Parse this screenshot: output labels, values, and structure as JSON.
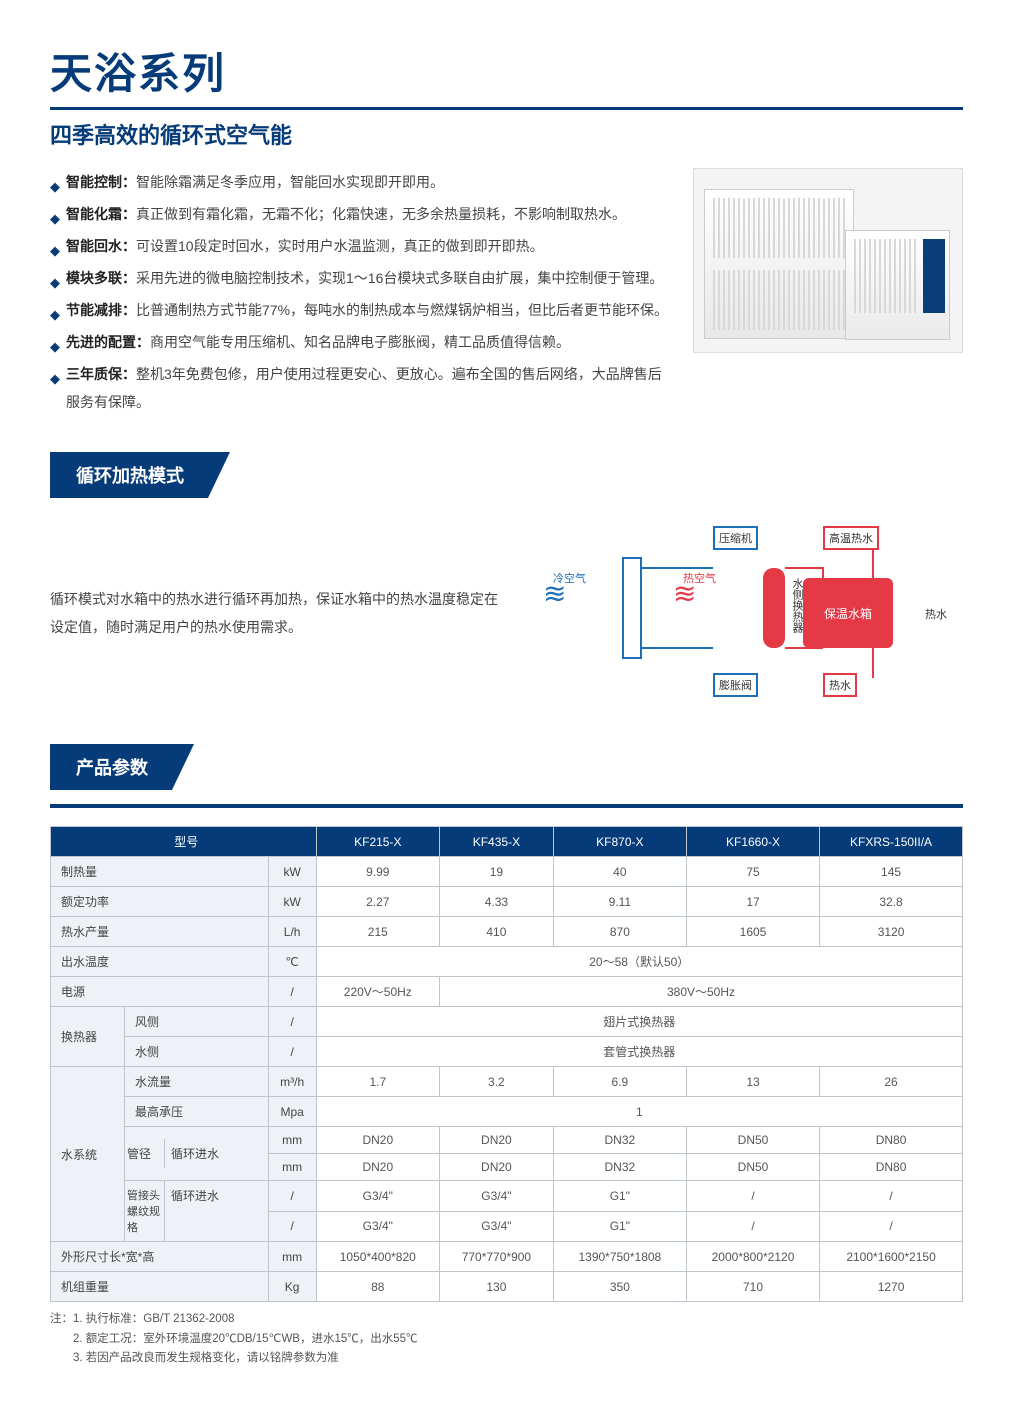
{
  "title": "天浴系列",
  "subtitle": "四季高效的循环式空气能",
  "features": [
    {
      "label": "智能控制：",
      "text": "智能除霜满足冬季应用，智能回水实现即开即用。"
    },
    {
      "label": "智能化霜：",
      "text": "真正做到有霜化霜，无霜不化；化霜快速，无多余热量损耗，不影响制取热水。"
    },
    {
      "label": "智能回水：",
      "text": "可设置10段定时回水，实时用户水温监测，真正的做到即开即热。"
    },
    {
      "label": "模块多联：",
      "text": "采用先进的微电脑控制技术，实现1～16台模块式多联自由扩展，集中控制便于管理。"
    },
    {
      "label": "节能减排：",
      "text": "比普通制热方式节能77%，每吨水的制热成本与燃煤锅炉相当，但比后者更节能环保。"
    },
    {
      "label": "先进的配置：",
      "text": "商用空气能专用压缩机、知名品牌电子膨胀阀，精工品质值得信赖。"
    },
    {
      "label": "三年质保：",
      "text": "整机3年免费包修，用户使用过程更安心、更放心。遍布全国的售后网络，大品牌售后服务有保障。"
    }
  ],
  "mode": {
    "header": "循环加热模式",
    "text": "循环模式对水箱中的热水进行循环再加热，保证水箱中的热水温度稳定在设定值，随时满足用户的热水使用需求。",
    "diagram": {
      "compressor": "压缩机",
      "hot_water_high": "高温热水",
      "cold_air": "冷空气",
      "hot_air": "热空气",
      "exchanger": "水侧换热器",
      "tank": "保温水箱",
      "expansion": "膨胀阀",
      "hot_water": "热水"
    }
  },
  "params": {
    "header": "产品参数",
    "columns": [
      "型号",
      "",
      "KF215-X",
      "KF435-X",
      "KF870-X",
      "KF1660-X",
      "KFXRS-150II/A"
    ],
    "rows": [
      {
        "label": "制热量",
        "unit": "kW",
        "cells": [
          "9.99",
          "19",
          "40",
          "75",
          "145"
        ]
      },
      {
        "label": "额定功率",
        "unit": "kW",
        "cells": [
          "2.27",
          "4.33",
          "9.11",
          "17",
          "32.8"
        ]
      },
      {
        "label": "热水产量",
        "unit": "L/h",
        "cells": [
          "215",
          "410",
          "870",
          "1605",
          "3120"
        ]
      },
      {
        "label": "出水温度",
        "unit": "℃",
        "merged": "20～58（默认50）"
      },
      {
        "label": "电源",
        "unit": "/",
        "split": {
          "a": "220V～50Hz",
          "b": "380V～50Hz"
        }
      }
    ],
    "hx": {
      "group": "换热器",
      "rows": [
        {
          "label": "风侧",
          "unit": "/",
          "merged": "翅片式换热器"
        },
        {
          "label": "水侧",
          "unit": "/",
          "merged": "套管式换热器"
        }
      ]
    },
    "water": {
      "group": "水系统",
      "rows": [
        {
          "label": "水流量",
          "unit": "m³/h",
          "cells": [
            "1.7",
            "3.2",
            "6.9",
            "13",
            "26"
          ]
        },
        {
          "label": "最高承压",
          "unit": "Mpa",
          "merged": "1"
        },
        {
          "sub": "管径",
          "label": "循环进水",
          "unit": "mm",
          "cells": [
            "DN20",
            "DN20",
            "DN32",
            "DN50",
            "DN80"
          ]
        },
        {
          "label": "出水",
          "unit": "mm",
          "cells": [
            "DN20",
            "DN20",
            "DN32",
            "DN50",
            "DN80"
          ]
        },
        {
          "sub": "管接头螺纹规格",
          "label": "循环进水",
          "unit": "/",
          "cells": [
            "G3/4\"",
            "G3/4\"",
            "G1\"",
            "/",
            "/"
          ]
        },
        {
          "label": "出水",
          "unit": "/",
          "cells": [
            "G3/4\"",
            "G3/4\"",
            "G1\"",
            "/",
            "/"
          ]
        }
      ]
    },
    "tail": [
      {
        "label": "外形尺寸长*宽*高",
        "unit": "mm",
        "cells": [
          "1050*400*820",
          "770*770*900",
          "1390*750*1808",
          "2000*800*2120",
          "2100*1600*2150"
        ]
      },
      {
        "label": "机组重量",
        "unit": "Kg",
        "cells": [
          "88",
          "130",
          "350",
          "710",
          "1270"
        ]
      }
    ],
    "notes": [
      "注：1. 执行标准：GB/T 21362-2008",
      "　　2. 额定工况：室外环境温度20℃DB/15℃WB，进水15℃，出水55℃",
      "　　3. 若因产品改良而发生规格变化，请以铭牌参数为准"
    ]
  },
  "colors": {
    "brand": "#063b7a",
    "accent_red": "#e63946",
    "accent_blue": "#1d6fb8",
    "grid": "#bfc5cc",
    "rowbg": "#eef1f5"
  }
}
